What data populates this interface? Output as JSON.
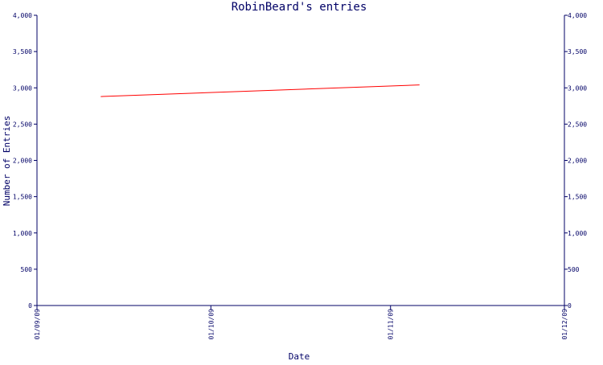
{
  "chart_data": {
    "type": "line",
    "title": "RobinBeard's entries",
    "xlabel": "Date",
    "ylabel": "Number of Entries",
    "x_ticks": [
      "01/09/09",
      "01/10/09",
      "01/11/09",
      "01/12/09"
    ],
    "xlim": [
      "01/09/09",
      "01/12/09"
    ],
    "ylim": [
      0,
      4000
    ],
    "y_ticks": [
      0,
      500,
      1000,
      1500,
      2000,
      2500,
      3000,
      3500,
      4000
    ],
    "y_tick_labels": [
      "0",
      "500",
      "1,000",
      "1,500",
      "2,000",
      "2,500",
      "3,000",
      "3,500",
      "4,000"
    ],
    "grid": false,
    "series": [
      {
        "color": "#ff0000",
        "x": [
          "2009-09-12",
          "2009-11-06"
        ],
        "values": [
          2880,
          3040
        ]
      }
    ],
    "colors": {
      "axis": "#000066",
      "text": "#000066",
      "series": "#ff0000",
      "background": "#ffffff"
    }
  }
}
